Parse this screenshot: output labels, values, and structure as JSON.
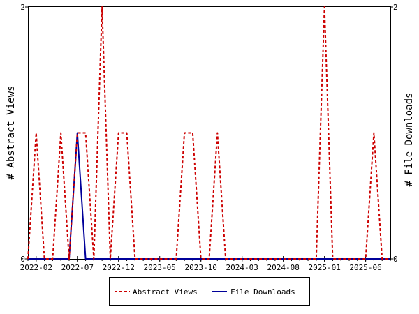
{
  "chart_data": {
    "type": "line",
    "xlabel": "",
    "ylabel": "# Abstract Views",
    "y2label": "# File Downloads",
    "x_tick_labels": [
      "2022-02",
      "2022-07",
      "2022-12",
      "2023-05",
      "2023-10",
      "2024-03",
      "2024-08",
      "2025-01",
      "2025-06"
    ],
    "ylim": [
      0,
      2
    ],
    "y2lim": [
      0,
      2
    ],
    "y_ticks": [
      0,
      2
    ],
    "y2_ticks": [
      0,
      2
    ],
    "x_range": [
      "2022-01",
      "2025-09"
    ],
    "grid": false,
    "legend_position": "bottom",
    "series": [
      {
        "name": "Abstract Views",
        "color": "#cc0000",
        "dash": "dashed",
        "axis": "left",
        "x": [
          "2022-01",
          "2022-02",
          "2022-03",
          "2022-04",
          "2022-05",
          "2022-06",
          "2022-07",
          "2022-08",
          "2022-09",
          "2022-10",
          "2022-11",
          "2022-12",
          "2023-01",
          "2023-02",
          "2023-03",
          "2023-04",
          "2023-05",
          "2023-06",
          "2023-07",
          "2023-08",
          "2023-09",
          "2023-10",
          "2023-11",
          "2023-12",
          "2024-01",
          "2024-02",
          "2024-03",
          "2024-04",
          "2024-05",
          "2024-06",
          "2024-07",
          "2024-08",
          "2024-09",
          "2024-10",
          "2024-11",
          "2024-12",
          "2025-01",
          "2025-02",
          "2025-03",
          "2025-04",
          "2025-05",
          "2025-06",
          "2025-07",
          "2025-08",
          "2025-09"
        ],
        "values": [
          0,
          1,
          0,
          0,
          1,
          0,
          1,
          1,
          0,
          2,
          0,
          1,
          1,
          0,
          0,
          0,
          0,
          0,
          0,
          1,
          1,
          0,
          0,
          1,
          0,
          0,
          0,
          0,
          0,
          0,
          0,
          0,
          0,
          0,
          0,
          0,
          2,
          0,
          0,
          0,
          0,
          0,
          1,
          0,
          0
        ]
      },
      {
        "name": "File Downloads",
        "color": "#000099",
        "dash": "solid",
        "axis": "right",
        "x": [
          "2022-01",
          "2022-02",
          "2022-03",
          "2022-04",
          "2022-05",
          "2022-06",
          "2022-07",
          "2022-08",
          "2022-09",
          "2022-10",
          "2022-11",
          "2022-12",
          "2023-01",
          "2023-02",
          "2023-03",
          "2023-04",
          "2023-05",
          "2023-06",
          "2023-07",
          "2023-08",
          "2023-09",
          "2023-10",
          "2023-11",
          "2023-12",
          "2024-01",
          "2024-02",
          "2024-03",
          "2024-04",
          "2024-05",
          "2024-06",
          "2024-07",
          "2024-08",
          "2024-09",
          "2024-10",
          "2024-11",
          "2024-12",
          "2025-01",
          "2025-02",
          "2025-03",
          "2025-04",
          "2025-05",
          "2025-06",
          "2025-07",
          "2025-08",
          "2025-09"
        ],
        "values": [
          0,
          0,
          0,
          0,
          0,
          0,
          1,
          0,
          0,
          0,
          0,
          0,
          0,
          0,
          0,
          0,
          0,
          0,
          0,
          0,
          0,
          0,
          0,
          0,
          0,
          0,
          0,
          0,
          0,
          0,
          0,
          0,
          0,
          0,
          0,
          0,
          0,
          0,
          0,
          0,
          0,
          0,
          0,
          0,
          0
        ]
      }
    ]
  }
}
